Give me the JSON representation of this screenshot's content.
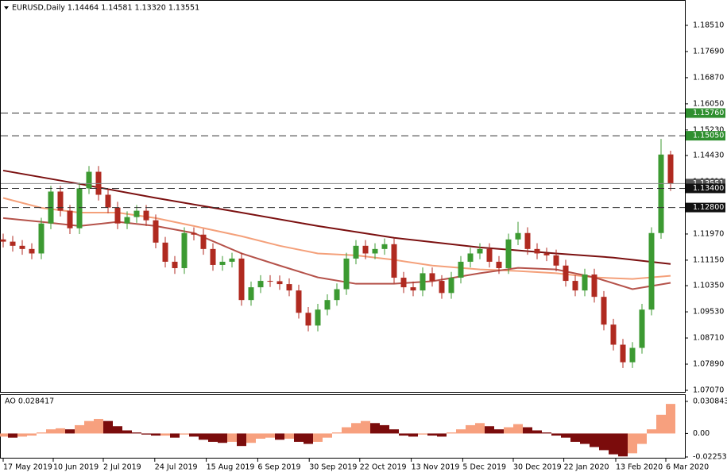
{
  "chart_data": [
    {
      "type": "candlestick",
      "title": "EURUSD,Daily  1.14464 1.14581 1.13320 1.13551",
      "up_color": "#3c9a32",
      "down_color": "#b02a20",
      "ylim": [
        1.0702,
        1.1928
      ],
      "yticks": [
        {
          "value": 1.1851,
          "label": "1.18510"
        },
        {
          "value": 1.1769,
          "label": "1.17690"
        },
        {
          "value": 1.1687,
          "label": "1.16870"
        },
        {
          "value": 1.1605,
          "label": "1.16050"
        },
        {
          "value": 1.1523,
          "label": "1.15230"
        },
        {
          "value": 1.1443,
          "label": "1.14430"
        },
        {
          "value": 1.1361,
          "label": "1.13610"
        },
        {
          "value": 1.1279,
          "label": "1.12790"
        },
        {
          "value": 1.1197,
          "label": "1.11970"
        },
        {
          "value": 1.1115,
          "label": "1.11150"
        },
        {
          "value": 1.1035,
          "label": "1.10350"
        },
        {
          "value": 1.0953,
          "label": "1.09530"
        },
        {
          "value": 1.0871,
          "label": "1.08710"
        },
        {
          "value": 1.0789,
          "label": "1.07890"
        },
        {
          "value": 1.0707,
          "label": "1.07070"
        }
      ],
      "xticks": [
        {
          "value": 0,
          "label": "17 May 2019"
        },
        {
          "value": 5.25,
          "label": "10 Jun 2019"
        },
        {
          "value": 10.5,
          "label": "2 Jul 2019"
        },
        {
          "value": 15.9,
          "label": "24 Jul 2019"
        },
        {
          "value": 21.3,
          "label": "15 Aug 2019"
        },
        {
          "value": 26.7,
          "label": "6 Sep 2019"
        },
        {
          "value": 32.1,
          "label": "30 Sep 2019"
        },
        {
          "value": 37.4,
          "label": "22 Oct 2019"
        },
        {
          "value": 42.8,
          "label": "13 Nov 2019"
        },
        {
          "value": 48.2,
          "label": "5 Dec 2019"
        },
        {
          "value": 53.5,
          "label": "30 Dec 2019"
        },
        {
          "value": 58.8,
          "label": "22 Jan 2020"
        },
        {
          "value": 64.25,
          "label": "13 Feb 2020"
        },
        {
          "value": 69.5,
          "label": "6 Mar 2020"
        }
      ],
      "open": [
        1.118,
        1.1173,
        1.116,
        1.115,
        1.1136,
        1.123,
        1.133,
        1.127,
        1.1215,
        1.134,
        1.1392,
        1.132,
        1.128,
        1.123,
        1.125,
        1.127,
        1.124,
        1.117,
        1.111,
        1.109,
        1.12,
        1.1195,
        1.115,
        1.11,
        1.111,
        1.112,
        1.099,
        1.103,
        1.105,
        1.1049,
        1.104,
        1.102,
        1.095,
        1.091,
        1.096,
        1.099,
        1.1024,
        1.112,
        1.116,
        1.1136,
        1.115,
        1.1165,
        1.106,
        1.103,
        1.102,
        1.1074,
        1.105,
        1.1012,
        1.106,
        1.111,
        1.1136,
        1.115,
        1.111,
        1.109,
        1.118,
        1.12,
        1.115,
        1.1136,
        1.113,
        1.1098,
        1.105,
        1.102,
        1.107,
        1.1,
        1.0913,
        1.085,
        1.0795,
        1.084,
        1.096,
        1.12,
        1.14464
      ],
      "high": [
        1.1198,
        1.1191,
        1.1178,
        1.1168,
        1.1248,
        1.1348,
        1.1348,
        1.1288,
        1.1358,
        1.141,
        1.141,
        1.1338,
        1.1298,
        1.1268,
        1.1288,
        1.1288,
        1.1258,
        1.1188,
        1.1128,
        1.1218,
        1.1218,
        1.1213,
        1.1168,
        1.1128,
        1.1138,
        1.1138,
        1.1048,
        1.1068,
        1.1068,
        1.1067,
        1.1058,
        1.1038,
        1.0968,
        1.0978,
        1.1008,
        1.1042,
        1.1138,
        1.1178,
        1.1178,
        1.1168,
        1.1183,
        1.1183,
        1.1078,
        1.1048,
        1.1092,
        1.1092,
        1.1068,
        1.1078,
        1.1128,
        1.1154,
        1.1168,
        1.1168,
        1.1128,
        1.1198,
        1.1235,
        1.1218,
        1.1168,
        1.1154,
        1.1148,
        1.1116,
        1.1068,
        1.1088,
        1.1088,
        1.1018,
        1.0931,
        1.0868,
        1.0858,
        1.0978,
        1.1218,
        1.1495,
        1.14581
      ],
      "low": [
        1.1155,
        1.1142,
        1.1132,
        1.1118,
        1.1118,
        1.1212,
        1.1252,
        1.1197,
        1.1197,
        1.1322,
        1.1302,
        1.1262,
        1.1212,
        1.1212,
        1.1232,
        1.1222,
        1.1152,
        1.1092,
        1.1072,
        1.1072,
        1.1177,
        1.1132,
        1.1082,
        1.1082,
        1.1092,
        1.0972,
        1.0972,
        1.1012,
        1.1031,
        1.1022,
        1.1002,
        1.0932,
        1.0892,
        1.0892,
        1.0942,
        1.0972,
        1.1006,
        1.1102,
        1.1118,
        1.1118,
        1.1132,
        1.1042,
        1.1012,
        1.1002,
        1.1002,
        1.1032,
        1.0994,
        1.0994,
        1.1042,
        1.1092,
        1.1118,
        1.1092,
        1.1072,
        1.1072,
        1.1162,
        1.1132,
        1.1118,
        1.1112,
        1.108,
        1.1032,
        1.1002,
        1.1002,
        1.0982,
        1.0895,
        1.0832,
        1.0777,
        1.0777,
        1.0822,
        1.0942,
        1.1182,
        1.1332
      ],
      "close": [
        1.1173,
        1.116,
        1.115,
        1.1136,
        1.123,
        1.133,
        1.127,
        1.1215,
        1.134,
        1.1392,
        1.132,
        1.128,
        1.123,
        1.125,
        1.127,
        1.124,
        1.117,
        1.111,
        1.109,
        1.12,
        1.1195,
        1.115,
        1.11,
        1.111,
        1.112,
        1.099,
        1.103,
        1.105,
        1.1049,
        1.104,
        1.102,
        1.095,
        1.091,
        1.096,
        1.099,
        1.1024,
        1.112,
        1.116,
        1.1136,
        1.115,
        1.1165,
        1.106,
        1.103,
        1.102,
        1.1074,
        1.105,
        1.1012,
        1.106,
        1.111,
        1.1136,
        1.115,
        1.111,
        1.109,
        1.118,
        1.12,
        1.115,
        1.1136,
        1.113,
        1.1098,
        1.105,
        1.102,
        1.107,
        1.1,
        1.0913,
        1.085,
        1.0795,
        1.084,
        1.096,
        1.12,
        1.1446,
        1.13551
      ],
      "lines": [
        {
          "color": "#7b1010",
          "x": [
            0,
            8,
            16,
            25,
            33,
            41,
            50,
            58,
            64,
            70
          ],
          "values": [
            1.1396,
            1.1354,
            1.131,
            1.1264,
            1.1222,
            1.1185,
            1.1155,
            1.1136,
            1.1123,
            1.1103
          ]
        },
        {
          "color": "#f4a07a",
          "x": [
            0,
            4,
            8,
            12,
            16,
            20,
            25,
            29,
            33,
            37,
            41,
            45,
            50,
            54,
            58,
            62,
            66,
            70
          ],
          "values": [
            1.131,
            1.1279,
            1.1264,
            1.1264,
            1.1247,
            1.1222,
            1.119,
            1.116,
            1.1136,
            1.113,
            1.1116,
            1.1098,
            1.1086,
            1.1081,
            1.1074,
            1.1061,
            1.1056,
            1.1066
          ]
        },
        {
          "color": "#b5524a",
          "x": [
            0,
            4,
            8,
            12,
            16,
            20,
            25,
            29,
            33,
            37,
            41,
            45,
            50,
            54,
            58,
            62,
            66,
            70
          ],
          "values": [
            1.1247,
            1.1235,
            1.1222,
            1.1235,
            1.1222,
            1.12,
            1.1136,
            1.1098,
            1.1061,
            1.1041,
            1.1041,
            1.1049,
            1.1074,
            1.1091,
            1.1086,
            1.1061,
            1.1024,
            1.1044
          ]
        }
      ],
      "levels": [
        {
          "value": 1.1576,
          "label": "1.15760",
          "style": "dashed",
          "color": "#2f8f2f"
        },
        {
          "value": 1.1505,
          "label": "1.15050",
          "style": "dashed",
          "color": "#2f8f2f"
        },
        {
          "value": 1.13551,
          "label": "1.13551",
          "style": "solid",
          "color": "#555555"
        },
        {
          "value": 1.134,
          "label": "1.13400",
          "style": "dashed",
          "color": "#111111"
        },
        {
          "value": 1.128,
          "label": "1.12800",
          "style": "dashed",
          "color": "#111111"
        }
      ]
    },
    {
      "type": "bar",
      "title": "AO 0.028417",
      "up_color": "#f7a07e",
      "down_color": "#7b0c0c",
      "ylim": [
        -0.0233,
        0.0369
      ],
      "yticks": [
        0.030843,
        {
          "value": 0,
          "label": "0.00"
        },
        -0.022539
      ],
      "values": [
        -0.003,
        -0.004,
        -0.003,
        -0.002,
        0.001,
        0.004,
        0.005,
        0.004,
        0.008,
        0.012,
        0.014,
        0.012,
        0.007,
        0.003,
        0.001,
        -0.001,
        -0.002,
        -0.002,
        -0.004,
        -0.001,
        -0.003,
        -0.006,
        -0.008,
        -0.009,
        -0.008,
        -0.012,
        -0.009,
        -0.005,
        -0.004,
        -0.006,
        -0.005,
        -0.008,
        -0.01,
        -0.008,
        -0.004,
        0.001,
        0.006,
        0.01,
        0.012,
        0.01,
        0.008,
        0.004,
        -0.002,
        -0.003,
        -0.001,
        -0.002,
        -0.003,
        0.001,
        0.004,
        0.008,
        0.01,
        0.007,
        0.004,
        0.006,
        0.009,
        0.006,
        0.003,
        0.001,
        -0.002,
        -0.004,
        -0.008,
        -0.01,
        -0.013,
        -0.016,
        -0.02,
        -0.022,
        -0.019,
        -0.01,
        0.004,
        0.018,
        0.028417
      ]
    }
  ]
}
